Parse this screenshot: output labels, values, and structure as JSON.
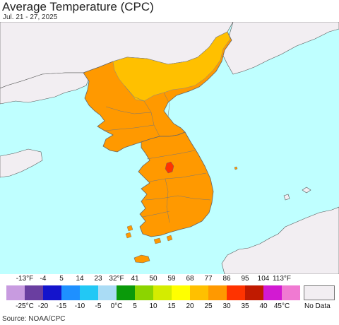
{
  "header": {
    "title": "Average Temperature (CPC)",
    "date_range": "Jul. 21 - 27, 2025"
  },
  "map": {
    "colors": {
      "ocean": "#bfffff",
      "land_nodata": "#f2eef2",
      "temp_20_25": "#ffc000",
      "temp_25_30": "#ff9900",
      "temp_30_35": "#ff3300",
      "border": "#666666"
    }
  },
  "legend": {
    "fahrenheit_labels": [
      "-13°F",
      "-4",
      "5",
      "14",
      "23",
      "32°F",
      "41",
      "50",
      "59",
      "68",
      "77",
      "86",
      "95",
      "104",
      "113°F"
    ],
    "celsius_labels": [
      "-25°C",
      "-20",
      "-15",
      "-10",
      "-5",
      "0°C",
      "5",
      "10",
      "15",
      "20",
      "25",
      "30",
      "35",
      "40",
      "45°C"
    ],
    "colors": [
      "#c89be0",
      "#6a3ea0",
      "#1414cc",
      "#1e90ff",
      "#22c8f5",
      "#aadcf5",
      "#0a9a0a",
      "#8cd400",
      "#d4ec00",
      "#ffff00",
      "#ffc000",
      "#ff9900",
      "#ff3300",
      "#c01a00",
      "#d21ad2",
      "#f07ad2"
    ],
    "no_data_label": "No Data",
    "no_data_color": "#f2eef2"
  },
  "footer": {
    "source": "Source: NOAA/CPC"
  }
}
